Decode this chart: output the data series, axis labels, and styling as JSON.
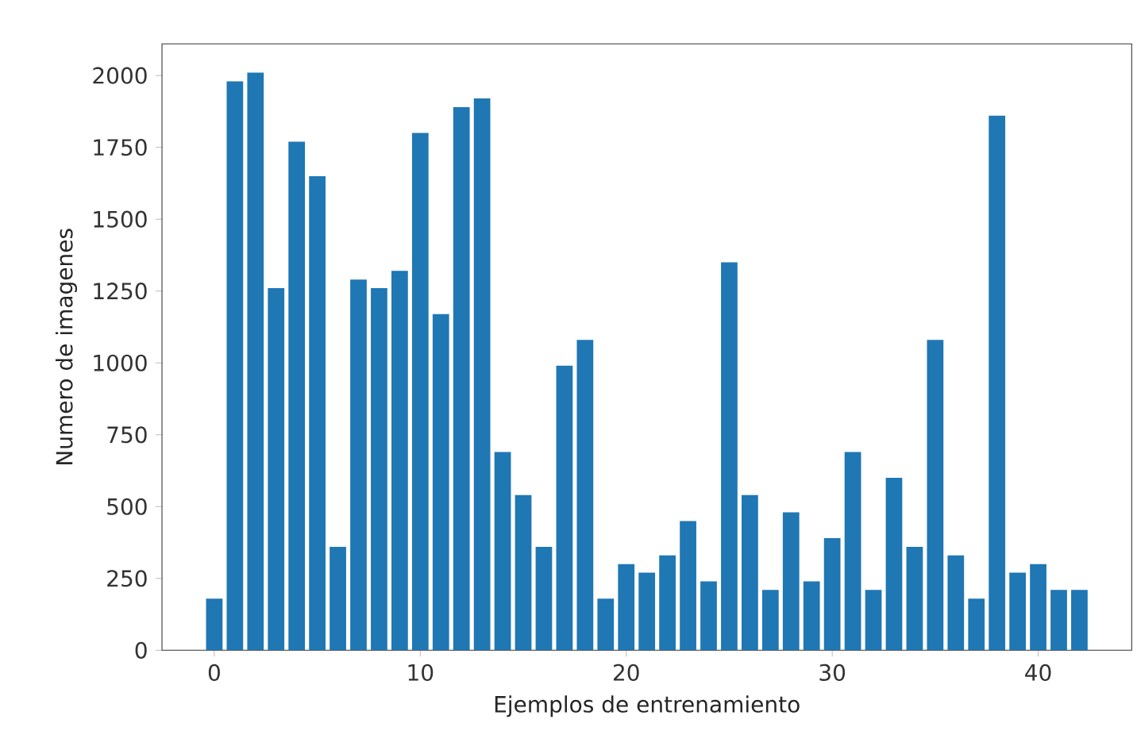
{
  "chart_data": {
    "type": "bar",
    "xlabel": "Ejemplos de entrenamiento",
    "ylabel": "Numero de imagenes",
    "color": "#1f77b4",
    "x": [
      0,
      1,
      2,
      3,
      4,
      5,
      6,
      7,
      8,
      9,
      10,
      11,
      12,
      13,
      14,
      15,
      16,
      17,
      18,
      19,
      20,
      21,
      22,
      23,
      24,
      25,
      26,
      27,
      28,
      29,
      30,
      31,
      32,
      33,
      34,
      35,
      36,
      37,
      38,
      39,
      40,
      41,
      42
    ],
    "values": [
      180,
      1980,
      2010,
      1260,
      1770,
      1650,
      360,
      1290,
      1260,
      1320,
      1800,
      1170,
      1890,
      1920,
      690,
      540,
      360,
      990,
      1080,
      180,
      300,
      270,
      330,
      450,
      240,
      1350,
      540,
      210,
      480,
      240,
      390,
      690,
      210,
      600,
      360,
      1080,
      330,
      180,
      1860,
      270,
      300,
      210,
      210
    ],
    "xlim": [
      -2.54,
      44.54
    ],
    "ylim": [
      0,
      2110
    ],
    "xticks": [
      0,
      10,
      20,
      30,
      40
    ],
    "yticks": [
      0,
      250,
      500,
      750,
      1000,
      1250,
      1500,
      1750,
      2000
    ],
    "grid": false
  }
}
